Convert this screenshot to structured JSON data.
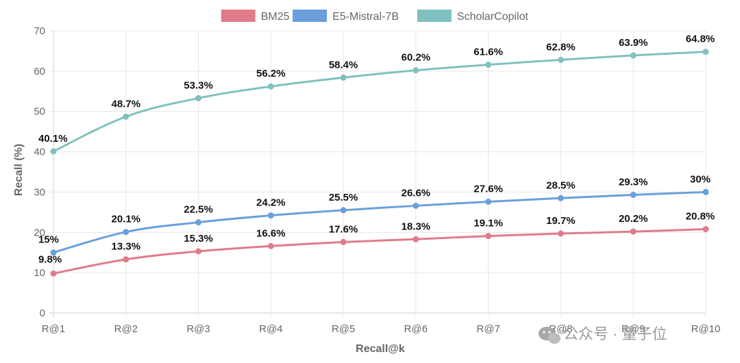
{
  "chart_data": {
    "type": "line",
    "xlabel": "Recall@k",
    "ylabel": "Recall (%)",
    "categories": [
      "R@1",
      "R@2",
      "R@3",
      "R@4",
      "R@5",
      "R@6",
      "R@7",
      "R@8",
      "R@9",
      "R@10"
    ],
    "ylim": [
      0,
      70
    ],
    "yticks": [
      0,
      10,
      20,
      30,
      40,
      50,
      60,
      70
    ],
    "grid": true,
    "legend_position": "top-center",
    "series": [
      {
        "name": "BM25",
        "color": "#e07b8a",
        "values": [
          9.8,
          13.3,
          15.3,
          16.6,
          17.6,
          18.3,
          19.1,
          19.7,
          20.2,
          20.8
        ],
        "labels": [
          "9.8%",
          "13.3%",
          "15.3%",
          "16.6%",
          "17.6%",
          "18.3%",
          "19.1%",
          "19.7%",
          "20.2%",
          "20.8%"
        ]
      },
      {
        "name": "E5-Mistral-7B",
        "color": "#6a9fdc",
        "values": [
          15,
          20.1,
          22.5,
          24.2,
          25.5,
          26.6,
          27.6,
          28.5,
          29.3,
          30
        ],
        "labels": [
          "15%",
          "20.1%",
          "22.5%",
          "24.2%",
          "25.5%",
          "26.6%",
          "27.6%",
          "28.5%",
          "29.3%",
          "30%"
        ]
      },
      {
        "name": "ScholarCopilot",
        "color": "#80c0c0",
        "values": [
          40.1,
          48.7,
          53.3,
          56.2,
          58.4,
          60.2,
          61.6,
          62.8,
          63.9,
          64.8
        ],
        "labels": [
          "40.1%",
          "48.7%",
          "53.3%",
          "56.2%",
          "58.4%",
          "60.2%",
          "61.6%",
          "62.8%",
          "63.9%",
          "64.8%"
        ]
      }
    ]
  },
  "watermark": {
    "icon": "wechat-icon",
    "text": "公众号 · 量子位"
  }
}
